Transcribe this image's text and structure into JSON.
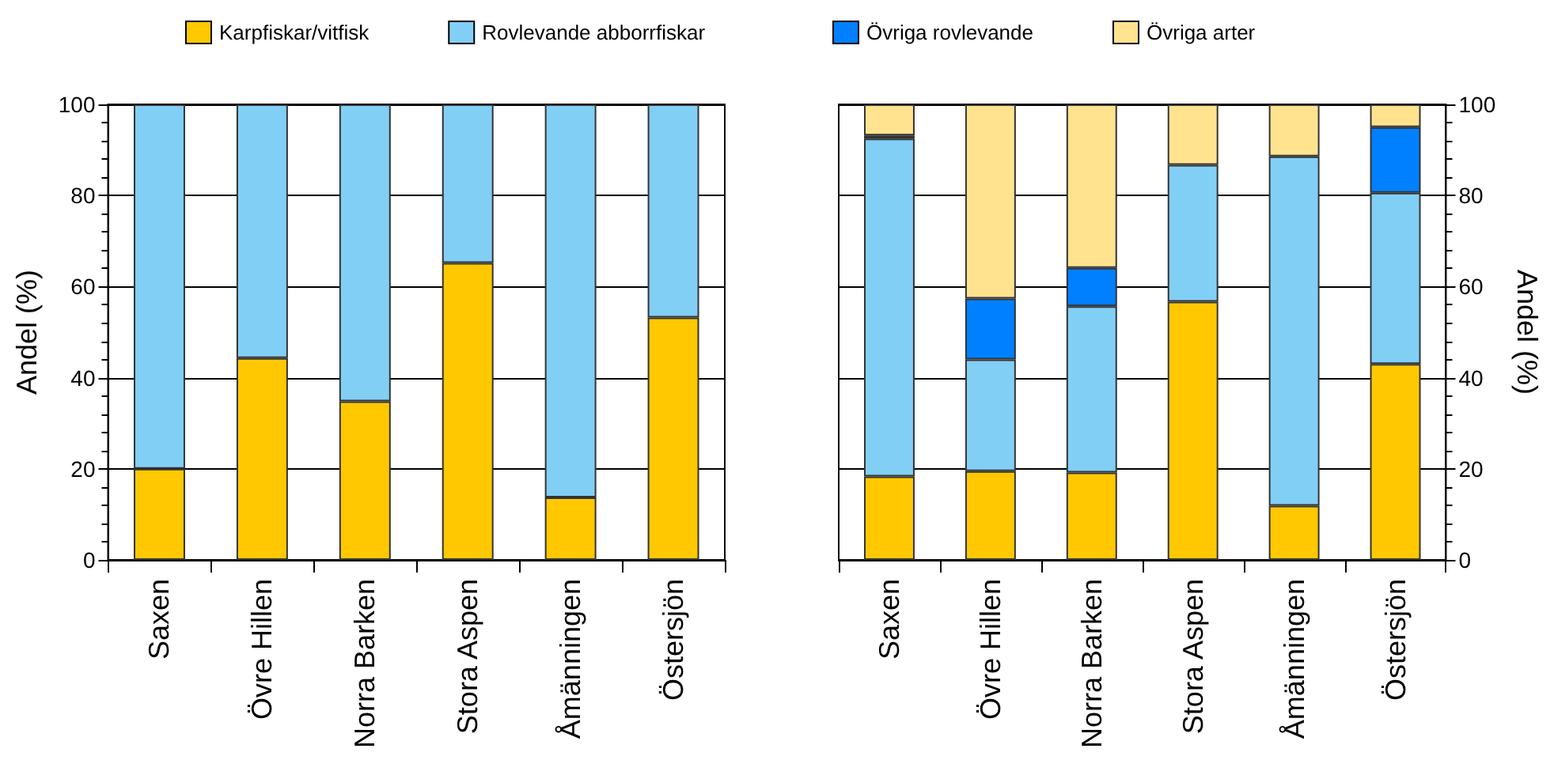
{
  "chart_data": [
    {
      "type": "bar",
      "stacked": true,
      "categories": [
        "Saxen",
        "Övre Hillen",
        "Norra Barken",
        "Stora Aspen",
        "Åmänningen",
        "Östersjön"
      ],
      "ylabel": "Andel (%)",
      "ylim": [
        0,
        100
      ],
      "yticks": [
        0,
        20,
        40,
        60,
        80,
        100
      ],
      "grid": "y",
      "legend": "top",
      "series": [
        {
          "name": "Karpfiskar/vitfisk",
          "color": "#ffc800",
          "values": [
            20,
            44.3,
            34.8,
            65.2,
            13.7,
            53.2
          ]
        },
        {
          "name": "Rovlevande abborrfiskar",
          "color": "#82cff5",
          "values": [
            80,
            55.7,
            65.2,
            34.8,
            86.3,
            46.8
          ]
        }
      ]
    },
    {
      "type": "bar",
      "stacked": true,
      "categories": [
        "Saxen",
        "Övre Hillen",
        "Norra Barken",
        "Stora Aspen",
        "Åmänningen",
        "Östersjön"
      ],
      "ylabel": "Andel (%)",
      "ylim": [
        0,
        100
      ],
      "yticks": [
        0,
        20,
        40,
        60,
        80,
        100
      ],
      "grid": "y",
      "legend": "top",
      "series": [
        {
          "name": "Karpfiskar/vitfisk",
          "color": "#ffc800",
          "values": [
            18.3,
            19.5,
            19.2,
            56.7,
            11.9,
            43.0
          ]
        },
        {
          "name": "Rovlevande abborrfiskar",
          "color": "#82cff5",
          "values": [
            74.2,
            24.5,
            36.5,
            30.0,
            76.7,
            37.6
          ]
        },
        {
          "name": "Övriga rovlevande",
          "color": "#0080ff",
          "values": [
            0.7,
            13.4,
            8.4,
            0,
            0,
            14.4
          ]
        },
        {
          "name": "Övriga arter",
          "color": "#ffe38f",
          "values": [
            6.8,
            42.6,
            35.9,
            13.3,
            11.4,
            5.0
          ]
        }
      ]
    }
  ]
}
